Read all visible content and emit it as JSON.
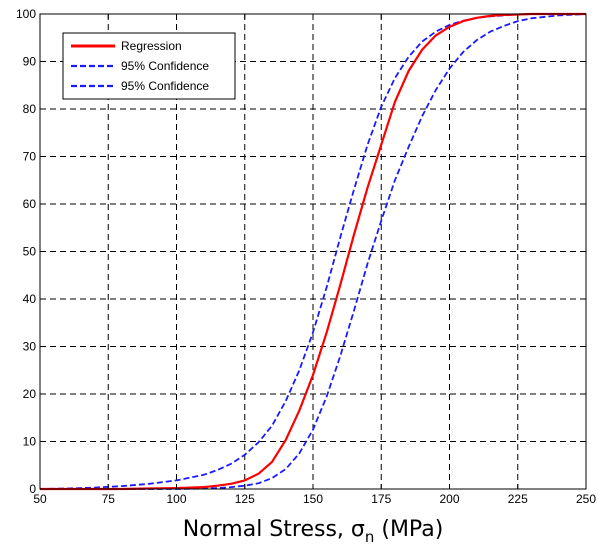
{
  "chart_data": {
    "type": "line",
    "title": "",
    "xlabel_main": "Normal Stress, σ",
    "xlabel_sub": "n",
    "xlabel_unit": " (MPa)",
    "ylabel": "",
    "xlim": [
      50,
      250
    ],
    "ylim": [
      0,
      100
    ],
    "xticks": [
      50,
      75,
      100,
      125,
      150,
      175,
      200,
      225,
      250
    ],
    "yticks": [
      0,
      10,
      20,
      30,
      40,
      50,
      60,
      70,
      80,
      90,
      100
    ],
    "grid": true,
    "legend_position": "top-left",
    "x": [
      50,
      60,
      70,
      80,
      90,
      100,
      110,
      115,
      120,
      125,
      130,
      135,
      140,
      145,
      150,
      155,
      160,
      165,
      170,
      175,
      180,
      185,
      190,
      195,
      200,
      205,
      210,
      215,
      220,
      225,
      230,
      240,
      250
    ],
    "series": [
      {
        "name": "Regression",
        "color": "#ff0000",
        "dash": "solid",
        "values": [
          0,
          0,
          0,
          0,
          0.1,
          0.2,
          0.4,
          0.7,
          1.1,
          1.8,
          3.2,
          5.7,
          10.3,
          16.5,
          24,
          33,
          43,
          53.5,
          63.5,
          72.5,
          81.5,
          88,
          92.5,
          95.5,
          97.3,
          98.5,
          99.2,
          99.6,
          99.8,
          99.9,
          100,
          100,
          100
        ]
      },
      {
        "name": "95% Confidence",
        "color": "#1a1aff",
        "dash": "dashed",
        "values": [
          0,
          0.1,
          0.3,
          0.6,
          1.1,
          1.8,
          3,
          4,
          5.3,
          7.2,
          9.8,
          13.3,
          18.5,
          25,
          33,
          42.5,
          53,
          63,
          72.5,
          80.5,
          86.5,
          91,
          94.2,
          96.3,
          97.7,
          98.6,
          99.2,
          99.5,
          99.7,
          99.9,
          100,
          100,
          100
        ]
      },
      {
        "name": "95% Confidence",
        "color": "#1a1aff",
        "dash": "dashed",
        "values": [
          0,
          0,
          0,
          0,
          0,
          0,
          0.1,
          0.2,
          0.4,
          0.7,
          1.2,
          2.3,
          4.2,
          7.5,
          12.5,
          19.5,
          28,
          37.5,
          47.5,
          56.5,
          65,
          72,
          78.5,
          84,
          88.5,
          92,
          94.5,
          96.3,
          97.5,
          98.5,
          99.1,
          99.7,
          100
        ]
      }
    ]
  }
}
